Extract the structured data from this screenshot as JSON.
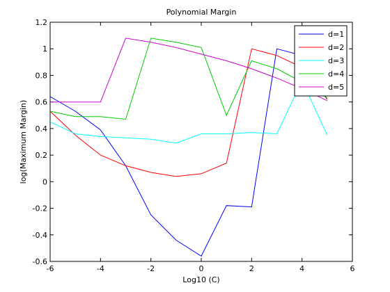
{
  "chart_data": {
    "type": "line",
    "title": "Polynomial Margin",
    "xlabel": "Log10 (C)",
    "ylabel": "log(Maximum Margin)",
    "xlim": [
      -6,
      6
    ],
    "ylim": [
      -0.6,
      1.2
    ],
    "xticks": [
      -6,
      -4,
      -2,
      0,
      2,
      4,
      6
    ],
    "yticks": [
      -0.6,
      -0.4,
      -0.2,
      0,
      0.2,
      0.4,
      0.6,
      0.8,
      1,
      1.2
    ],
    "xtick_labels": [
      "-6",
      "-4",
      "-2",
      "0",
      "2",
      "4",
      "6"
    ],
    "ytick_labels": [
      "-0.6",
      "-0.4",
      "-0.2",
      "0",
      "0.2",
      "0.4",
      "0.6",
      "0.8",
      "1",
      "1.2"
    ],
    "grid": false,
    "legend_position": "top-right",
    "x": [
      -6,
      -5,
      -4,
      -3,
      -2,
      -1,
      0,
      1,
      2,
      3,
      4,
      5
    ],
    "series": [
      {
        "name": "d=1",
        "color": "#0000ff",
        "values": [
          0.64,
          0.53,
          0.39,
          0.12,
          -0.25,
          -0.44,
          -0.56,
          -0.18,
          -0.19,
          1.0,
          0.95,
          0.62
        ]
      },
      {
        "name": "d=2",
        "color": "#ff0000",
        "values": [
          0.53,
          0.35,
          0.2,
          0.12,
          0.07,
          0.04,
          0.06,
          0.14,
          1.0,
          0.95,
          0.86,
          0.62
        ]
      },
      {
        "name": "d=3",
        "color": "#00ffff",
        "values": [
          0.45,
          0.36,
          0.34,
          0.33,
          0.32,
          0.29,
          0.36,
          0.36,
          0.37,
          0.36,
          0.76,
          0.35
        ]
      },
      {
        "name": "d=4",
        "color": "#00cc00",
        "values": [
          0.53,
          0.49,
          0.49,
          0.47,
          1.08,
          1.05,
          1.01,
          0.5,
          0.91,
          0.85,
          0.75,
          0.63
        ]
      },
      {
        "name": "d=5",
        "color": "#cc00cc",
        "values": [
          0.6,
          0.6,
          0.6,
          1.08,
          1.05,
          1.01,
          0.96,
          0.91,
          0.85,
          0.78,
          0.7,
          0.61
        ]
      }
    ]
  }
}
